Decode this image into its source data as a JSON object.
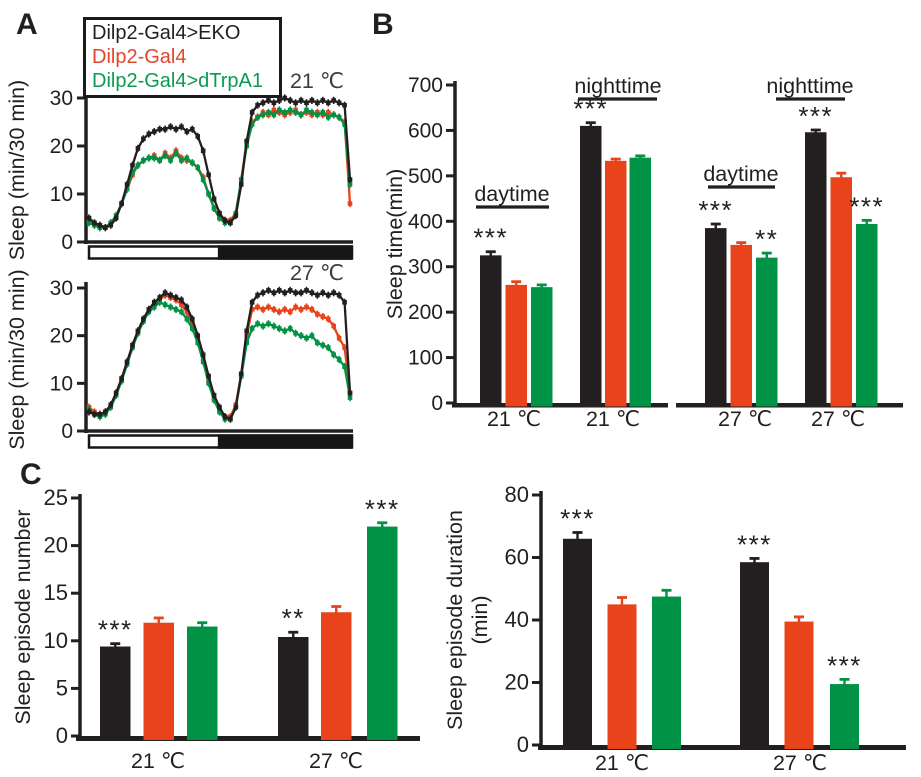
{
  "figure": {
    "panels": {
      "a": "A",
      "b": "B",
      "c": "C"
    }
  },
  "colors": {
    "black": "#231f20",
    "red": "#e8431b",
    "green": "#009245",
    "temp_label": "#3d3d3d",
    "series_order": [
      "#231f20",
      "#e8431b",
      "#009245"
    ]
  },
  "legend": {
    "items": [
      {
        "label": "Dilp2-Gal4>EKO",
        "color": "#231f20"
      },
      {
        "label": "Dilp2-Gal4",
        "color": "#e2462a"
      },
      {
        "label": "Dilp2-Gal4>dTrpA1",
        "color": "#0a9b50"
      }
    ]
  },
  "chart_data": [
    {
      "id": "sleep_profile_21c",
      "type": "line",
      "temp_label": "21 ℃",
      "ylabel": "Sleep (min/30 min)",
      "ylim": [
        0,
        30
      ],
      "yticks": [
        0,
        10,
        20,
        30
      ],
      "x_range_hours": [
        0,
        24
      ],
      "points_per_hour": 2,
      "photoperiod_bar": {
        "light_fraction": 0.49,
        "light_hours": 12,
        "dark_hours": 12
      },
      "series": [
        {
          "name": "Dilp2-Gal4>EKO",
          "color": "#231f20",
          "values": [
            5,
            4,
            3.5,
            3,
            3.5,
            5,
            8,
            12,
            16,
            19.5,
            21.5,
            22.5,
            23,
            23.5,
            23.5,
            24,
            23.5,
            24,
            23,
            23.5,
            22,
            19,
            14,
            9,
            6,
            4.5,
            4,
            5.5,
            12,
            21,
            27,
            28.5,
            29,
            29.5,
            29,
            29.5,
            30,
            29.5,
            29,
            29.5,
            29,
            29.5,
            29,
            29.5,
            29,
            29.5,
            29,
            28.5,
            13
          ]
        },
        {
          "name": "Dilp2-Gal4",
          "color": "#e8431b",
          "values": [
            4.5,
            3.5,
            3,
            3,
            4,
            5.5,
            8,
            11,
            14,
            16,
            17,
            17.5,
            18,
            17,
            18.5,
            17.5,
            19,
            17.5,
            17,
            16.5,
            15.5,
            13.5,
            10,
            7,
            5,
            4.5,
            4.5,
            6,
            13,
            21,
            25,
            26,
            27,
            26.5,
            27.5,
            27,
            26.5,
            27,
            27.5,
            26.5,
            27,
            26.5,
            27,
            26.5,
            27,
            26.5,
            26,
            25,
            8
          ]
        },
        {
          "name": "Dilp2-Gal4>dTrpA1",
          "color": "#009245",
          "values": [
            4,
            3.5,
            3,
            3,
            4,
            5.5,
            8,
            11,
            14.5,
            16,
            17,
            17.5,
            17.5,
            17,
            18,
            17,
            18.5,
            17,
            17.5,
            16.5,
            15.5,
            13,
            10,
            7,
            5,
            4,
            4,
            6,
            13,
            20,
            24.5,
            26,
            26.5,
            27,
            26.5,
            27.5,
            27,
            27.5,
            27,
            26.5,
            27.5,
            27,
            26.5,
            27,
            26,
            26.5,
            26,
            24.5,
            12
          ]
        }
      ]
    },
    {
      "id": "sleep_profile_27c",
      "type": "line",
      "temp_label": "27 ℃",
      "ylabel": "Sleep (min/30 min)",
      "ylim": [
        0,
        30
      ],
      "yticks": [
        0,
        10,
        20,
        30
      ],
      "x_range_hours": [
        0,
        24
      ],
      "points_per_hour": 2,
      "photoperiod_bar": {
        "light_fraction": 0.49,
        "light_hours": 12,
        "dark_hours": 12
      },
      "series": [
        {
          "name": "Dilp2-Gal4>EKO",
          "color": "#231f20",
          "values": [
            4,
            3.5,
            3.5,
            4,
            5.5,
            8,
            11,
            14.5,
            18,
            21,
            23.5,
            25.5,
            27,
            28,
            29,
            28.5,
            28,
            27.5,
            26,
            23.5,
            20,
            16,
            11.5,
            7.5,
            5,
            3,
            2.5,
            5,
            12,
            21,
            27,
            28.5,
            29,
            29.5,
            29,
            29.5,
            29,
            29.5,
            29,
            29,
            29.5,
            29,
            28.5,
            29,
            28.5,
            29,
            28.5,
            27,
            8
          ]
        },
        {
          "name": "Dilp2-Gal4",
          "color": "#e8431b",
          "values": [
            5,
            4,
            3.5,
            4,
            5.5,
            8,
            11,
            14.5,
            18,
            21,
            23.5,
            25.5,
            26.5,
            27.5,
            28.5,
            28,
            27.5,
            26.5,
            25,
            22.5,
            19,
            15,
            10.5,
            7,
            4.5,
            3,
            3,
            5.5,
            12,
            20,
            25.5,
            26,
            25.5,
            26,
            25.5,
            25,
            25.5,
            25,
            26,
            25.5,
            26,
            25.5,
            24.5,
            24,
            23.5,
            22,
            19.5,
            17.5,
            8
          ]
        },
        {
          "name": "Dilp2-Gal4>dTrpA1",
          "color": "#009245",
          "values": [
            4.5,
            3.5,
            3,
            3.5,
            5,
            7.5,
            10.5,
            14,
            17.5,
            20.5,
            23,
            25,
            26,
            27,
            26.5,
            26,
            25.5,
            25,
            23.5,
            21.5,
            18.5,
            14.5,
            10,
            6.5,
            4,
            2.5,
            2.5,
            5,
            11.5,
            18.5,
            21.5,
            22.5,
            22,
            22.5,
            22,
            21.5,
            21,
            21.5,
            20.5,
            20,
            19.5,
            20,
            18.5,
            18,
            17.5,
            16,
            15,
            13.5,
            7
          ]
        }
      ]
    },
    {
      "id": "sleep_time",
      "type": "bar",
      "ylabel": "Sleep time(min)",
      "ylim": [
        0,
        700
      ],
      "yticks": [
        0,
        100,
        200,
        300,
        400,
        500,
        600,
        700
      ],
      "sections": [
        "daytime",
        "nighttime",
        "daytime",
        "nighttime"
      ],
      "groups": [
        {
          "label": "21 ℃",
          "section": "daytime",
          "values": [
            325,
            260,
            255
          ],
          "errors": [
            8,
            7,
            5
          ],
          "sig": [
            "***",
            null,
            null
          ]
        },
        {
          "label": "21 ℃",
          "section": "nighttime",
          "values": [
            610,
            533,
            540
          ],
          "errors": [
            7,
            4,
            4
          ],
          "sig": [
            "***",
            null,
            null
          ]
        },
        {
          "label": "27 ℃",
          "section": "daytime",
          "values": [
            385,
            348,
            320
          ],
          "errors": [
            9,
            5,
            10
          ],
          "sig": [
            "***",
            null,
            "**"
          ]
        },
        {
          "label": "27 ℃",
          "section": "nighttime",
          "values": [
            596,
            497,
            394
          ],
          "errors": [
            5,
            9,
            8
          ],
          "sig": [
            "***",
            null,
            "***"
          ]
        }
      ]
    },
    {
      "id": "sleep_episode_number",
      "type": "bar",
      "ylabel": "Sleep episode number",
      "ylim": [
        0,
        25
      ],
      "yticks": [
        0,
        5,
        10,
        15,
        20,
        25
      ],
      "groups": [
        {
          "label": "21 ℃",
          "values": [
            9.4,
            11.9,
            11.5
          ],
          "errors": [
            0.3,
            0.5,
            0.4
          ],
          "sig": [
            "***",
            null,
            null
          ]
        },
        {
          "label": "27 ℃",
          "values": [
            10.4,
            13.0,
            22.0
          ],
          "errors": [
            0.5,
            0.6,
            0.4
          ],
          "sig": [
            "**",
            null,
            "***"
          ]
        }
      ]
    },
    {
      "id": "sleep_episode_duration",
      "type": "bar",
      "ylabel": "Sleep episode duration",
      "ylabel2": "(min)",
      "ylim": [
        0,
        80
      ],
      "yticks": [
        0,
        20,
        40,
        60,
        80
      ],
      "groups": [
        {
          "label": "21 ℃",
          "values": [
            66,
            45,
            47.5
          ],
          "errors": [
            2.0,
            2.2,
            2.0
          ],
          "sig": [
            "***",
            null,
            null
          ]
        },
        {
          "label": "27 ℃",
          "values": [
            58.5,
            39.5,
            19.5
          ],
          "errors": [
            1.2,
            1.5,
            1.5
          ],
          "sig": [
            "***",
            null,
            "***"
          ]
        }
      ]
    }
  ]
}
